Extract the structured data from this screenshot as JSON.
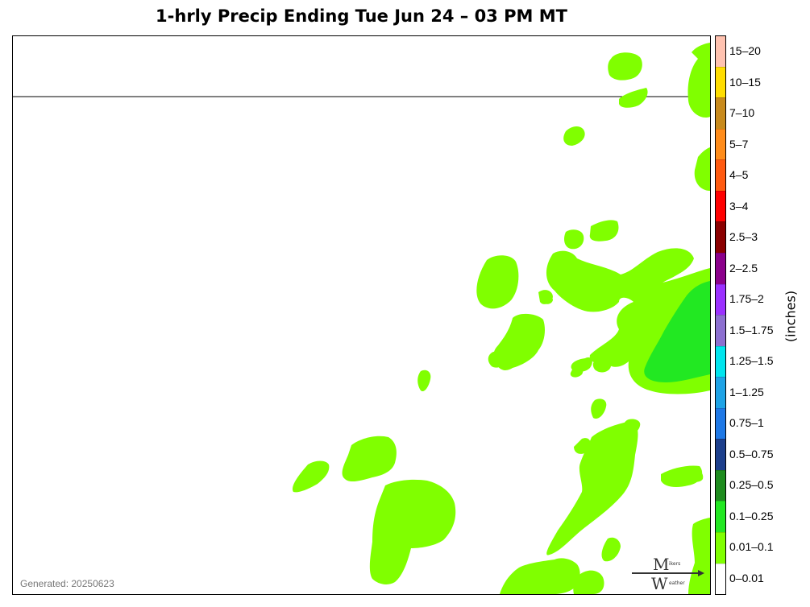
{
  "title": "1-hrly Precip Ending Tue Jun 24 – 03 PM MT",
  "generated": "Generated: 20250623",
  "units_label": "(inches)",
  "legend": [
    {
      "label": "15–20",
      "color": "#ffc2b0"
    },
    {
      "label": "10–15",
      "color": "#ffdd00"
    },
    {
      "label": "7–10",
      "color": "#c88a1c"
    },
    {
      "label": "5–7",
      "color": "#ff8c1a"
    },
    {
      "label": "4–5",
      "color": "#ff5a10"
    },
    {
      "label": "3–4",
      "color": "#ff0000"
    },
    {
      "label": "2.5–3",
      "color": "#8b0000"
    },
    {
      "label": "2–2.5",
      "color": "#8b008b"
    },
    {
      "label": "1.75–2",
      "color": "#9b30ff"
    },
    {
      "label": "1.5–1.75",
      "color": "#8c6fd0"
    },
    {
      "label": "1.25–1.5",
      "color": "#00e5ee"
    },
    {
      "label": "1–1.25",
      "color": "#1ea3e6"
    },
    {
      "label": "0.75–1",
      "color": "#1e78e6"
    },
    {
      "label": "0.5–0.75",
      "color": "#1c3f8c"
    },
    {
      "label": "0.25–0.5",
      "color": "#1e8c1e"
    },
    {
      "label": "0.1–0.25",
      "color": "#22e822"
    },
    {
      "label": "0.01–0.1",
      "color": "#80ff00"
    },
    {
      "label": "0–0.01",
      "color": "#ffffff"
    }
  ],
  "logo": {
    "top_letter": "M",
    "top_rest": "ikers",
    "bottom_letter": "W",
    "bottom_rest": "eather"
  },
  "colors": {
    "light_precip": "#80ff00",
    "moderate_precip": "#22e822"
  }
}
